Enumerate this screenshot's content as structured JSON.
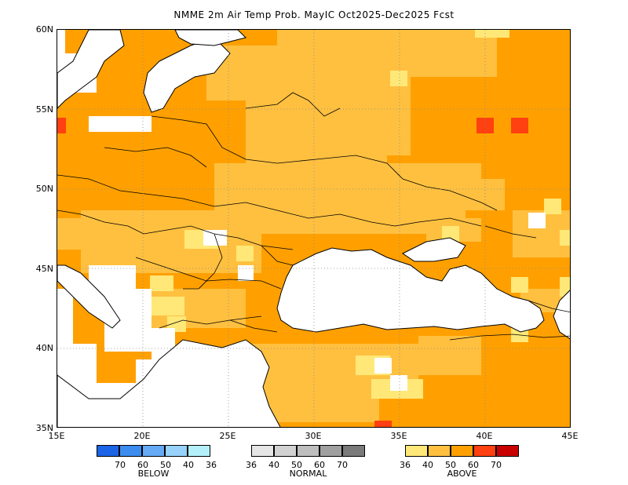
{
  "title": "NMME 2m Air Temp Prob. MayIC  Oct2025-Dec2025 Fcst",
  "map": {
    "lon_range": [
      15,
      45
    ],
    "lat_range": [
      35,
      60
    ],
    "lat_labels": [
      "60N",
      "55N",
      "50N",
      "45N",
      "40N",
      "35N"
    ],
    "lon_labels": [
      "15E",
      "20E",
      "25E",
      "30E",
      "35E",
      "40E",
      "45E"
    ],
    "colors": {
      "land_none": "#ffffff",
      "above_36": "#ffe878",
      "above_40": "#ffc040",
      "above_50": "#ffa000",
      "above_60": "#ff4010",
      "grid": "#888888",
      "coast": "#000000"
    }
  },
  "legend": {
    "below": {
      "caption": "BELOW",
      "ticks": [
        "70",
        "60",
        "50",
        "40",
        "36"
      ],
      "colors": [
        "#1c64e6",
        "#3c8cf0",
        "#64aaf5",
        "#96d2fa",
        "#b4f0fa"
      ]
    },
    "normal": {
      "caption": "NORMAL",
      "ticks": [
        "36",
        "40",
        "50",
        "60",
        "70"
      ],
      "colors": [
        "#e6e6e6",
        "#d2d2d2",
        "#bebebe",
        "#a0a0a0",
        "#7a7a7a"
      ]
    },
    "above": {
      "caption": "ABOVE",
      "ticks": [
        "36",
        "40",
        "50",
        "60",
        "70"
      ],
      "colors": [
        "#ffe878",
        "#ffc040",
        "#ffa000",
        "#ff4010",
        "#c80000"
      ]
    }
  }
}
